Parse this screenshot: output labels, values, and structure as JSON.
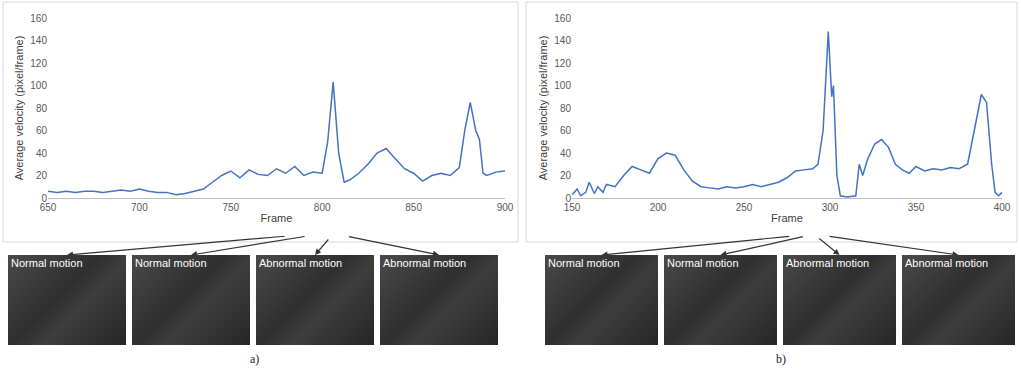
{
  "chart_data": [
    {
      "type": "line",
      "panel_label": "a)",
      "color": "#4472c4",
      "grid": false,
      "xlabel": "Frame",
      "ylabel": "Average velocity (pixel/frame)",
      "xlim": [
        650,
        900
      ],
      "xticks": [
        650,
        700,
        750,
        800,
        850,
        900
      ],
      "ylim": [
        0,
        160
      ],
      "yticks": [
        0,
        20,
        40,
        60,
        80,
        100,
        120,
        140,
        160
      ],
      "x": [
        650,
        655,
        660,
        665,
        670,
        675,
        680,
        685,
        690,
        695,
        700,
        705,
        710,
        715,
        720,
        725,
        730,
        735,
        740,
        745,
        750,
        755,
        760,
        765,
        770,
        775,
        780,
        785,
        790,
        795,
        800,
        803,
        806,
        809,
        812,
        815,
        820,
        825,
        830,
        835,
        840,
        845,
        850,
        855,
        860,
        865,
        870,
        875,
        878,
        881,
        884,
        886,
        888,
        890,
        895,
        900
      ],
      "values": [
        6,
        5,
        6,
        5,
        6,
        6,
        5,
        6,
        7,
        6,
        8,
        6,
        5,
        5,
        3,
        4,
        6,
        8,
        14,
        20,
        24,
        18,
        25,
        21,
        20,
        26,
        22,
        28,
        20,
        23,
        22,
        50,
        103,
        40,
        14,
        16,
        22,
        30,
        40,
        44,
        35,
        26,
        22,
        15,
        20,
        22,
        20,
        27,
        60,
        85,
        60,
        52,
        22,
        20,
        23,
        24
      ],
      "snapshots": [
        {
          "frame": 781,
          "label": "Normal motion"
        },
        {
          "frame": 792,
          "label": "Normal motion"
        },
        {
          "frame": 805,
          "label": "Abnormal motion"
        },
        {
          "frame": 813,
          "label": "Abnormal motion"
        }
      ]
    },
    {
      "type": "line",
      "panel_label": "b)",
      "color": "#4472c4",
      "grid": false,
      "xlabel": "Frame",
      "ylabel": "Average velocity (pixel/frame)",
      "xlim": [
        150,
        400
      ],
      "xticks": [
        150,
        200,
        250,
        300,
        350,
        400
      ],
      "ylim": [
        0,
        160
      ],
      "yticks": [
        0,
        20,
        40,
        60,
        80,
        100,
        120,
        140,
        160
      ],
      "x": [
        150,
        153,
        155,
        158,
        160,
        163,
        165,
        168,
        170,
        175,
        180,
        185,
        190,
        195,
        200,
        205,
        210,
        215,
        220,
        225,
        230,
        235,
        240,
        245,
        250,
        255,
        260,
        265,
        270,
        275,
        280,
        285,
        290,
        293,
        296,
        299,
        301,
        302,
        304,
        306,
        310,
        315,
        317,
        319,
        322,
        326,
        330,
        334,
        338,
        342,
        346,
        350,
        355,
        360,
        365,
        370,
        375,
        380,
        385,
        388,
        391,
        394,
        396,
        398,
        400
      ],
      "values": [
        3,
        8,
        2,
        5,
        14,
        4,
        10,
        5,
        12,
        10,
        20,
        28,
        25,
        22,
        35,
        40,
        38,
        25,
        15,
        10,
        9,
        8,
        10,
        9,
        10,
        12,
        10,
        12,
        14,
        18,
        24,
        25,
        26,
        30,
        60,
        148,
        90,
        100,
        20,
        2,
        1,
        2,
        30,
        20,
        35,
        48,
        52,
        45,
        30,
        25,
        22,
        28,
        24,
        26,
        25,
        27,
        26,
        30,
        70,
        92,
        85,
        30,
        5,
        2,
        5
      ],
      "snapshots": [
        {
          "frame": 278,
          "label": "Normal motion"
        },
        {
          "frame": 286,
          "label": "Normal motion"
        },
        {
          "frame": 292,
          "label": "Abnormal motion"
        },
        {
          "frame": 298,
          "label": "Abnormal motion"
        }
      ]
    }
  ]
}
